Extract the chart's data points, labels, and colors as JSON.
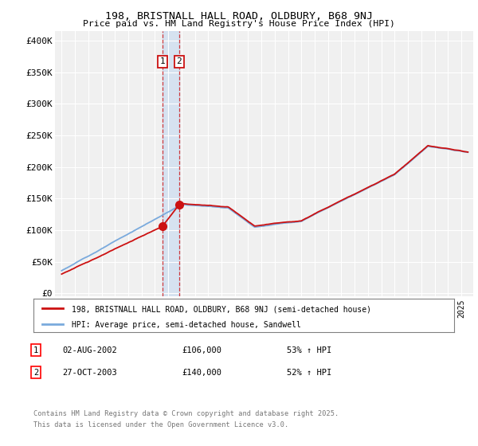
{
  "title_line1": "198, BRISTNALL HALL ROAD, OLDBURY, B68 9NJ",
  "title_line2": "Price paid vs. HM Land Registry's House Price Index (HPI)",
  "ylabel_ticks": [
    "£0",
    "£50K",
    "£100K",
    "£150K",
    "£200K",
    "£250K",
    "£300K",
    "£350K",
    "£400K"
  ],
  "ytick_values": [
    0,
    50000,
    100000,
    150000,
    200000,
    250000,
    300000,
    350000,
    400000
  ],
  "ylim": [
    -5000,
    415000
  ],
  "sale1_price": 106000,
  "sale2_price": 140000,
  "sale1_x": 2002.58,
  "sale2_x": 2003.82,
  "hpi_color": "#7aaadd",
  "sale_color": "#cc1111",
  "vline_color": "#cc1111",
  "vshade_color": "#ccddf0",
  "legend_label1": "198, BRISTNALL HALL ROAD, OLDBURY, B68 9NJ (semi-detached house)",
  "legend_label2": "HPI: Average price, semi-detached house, Sandwell",
  "footer1": "Contains HM Land Registry data © Crown copyright and database right 2025.",
  "footer2": "This data is licensed under the Open Government Licence v3.0.",
  "annotation1_date": "02-AUG-2002",
  "annotation1_price": "£106,000",
  "annotation1_hpi": "53% ↑ HPI",
  "annotation2_date": "27-OCT-2003",
  "annotation2_price": "£140,000",
  "annotation2_hpi": "52% ↑ HPI",
  "xlim_start": 1994.5,
  "xlim_end": 2025.9,
  "background_color": "#f0f0f0",
  "grid_color": "#ffffff"
}
